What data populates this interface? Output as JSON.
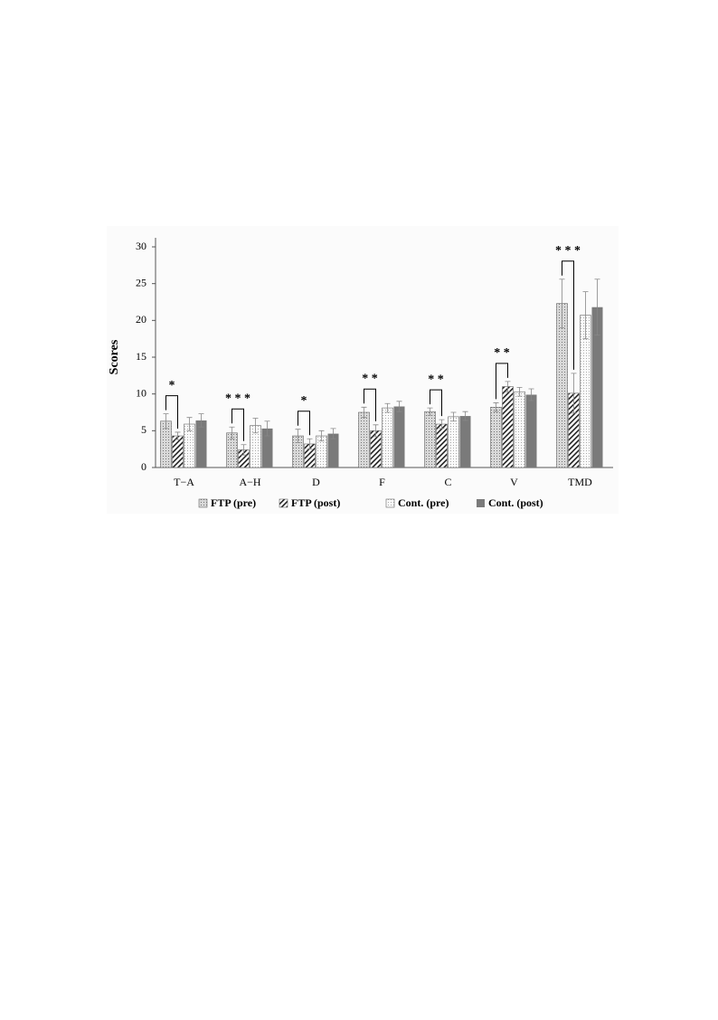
{
  "chart_data": {
    "type": "bar",
    "y_label": "Scores",
    "categories": [
      "T−A",
      "A−H",
      "D",
      "F",
      "C",
      "V",
      "TMD"
    ],
    "series": [
      {
        "name": "FTP (pre)",
        "color": "#9a9a9a",
        "pattern": "dots",
        "values": [
          6.3,
          4.7,
          4.3,
          7.5,
          7.6,
          8.2,
          22.3
        ],
        "errors": [
          1.0,
          0.8,
          0.9,
          0.7,
          0.5,
          0.6,
          3.3
        ]
      },
      {
        "name": "FTP (post)",
        "color": "#333333",
        "pattern": "hatch",
        "values": [
          4.3,
          2.4,
          3.2,
          5.0,
          5.9,
          11.0,
          10.1
        ],
        "errors": [
          0.5,
          0.7,
          0.7,
          0.8,
          0.6,
          0.7,
          2.7
        ]
      },
      {
        "name": "Cont. (pre)",
        "color": "#b0b0b0",
        "pattern": "fine-dots",
        "values": [
          5.9,
          5.7,
          4.3,
          8.1,
          6.9,
          10.3,
          20.7
        ],
        "errors": [
          0.9,
          1.0,
          0.7,
          0.6,
          0.6,
          0.6,
          3.2
        ]
      },
      {
        "name": "Cont. (post)",
        "color": "#7a7a7a",
        "pattern": "solid",
        "values": [
          6.4,
          5.3,
          4.6,
          8.3,
          7.0,
          9.9,
          21.8
        ],
        "errors": [
          0.9,
          1.0,
          0.7,
          0.7,
          0.6,
          0.8,
          3.8
        ]
      }
    ],
    "significance": [
      "*",
      "* * *",
      "*",
      "* *",
      "* *",
      "* *",
      "* * *"
    ],
    "ylim": [
      0,
      30
    ],
    "yticks": [
      0,
      5,
      10,
      15,
      20,
      25,
      30
    ],
    "grid": false,
    "legend": "bottom"
  }
}
